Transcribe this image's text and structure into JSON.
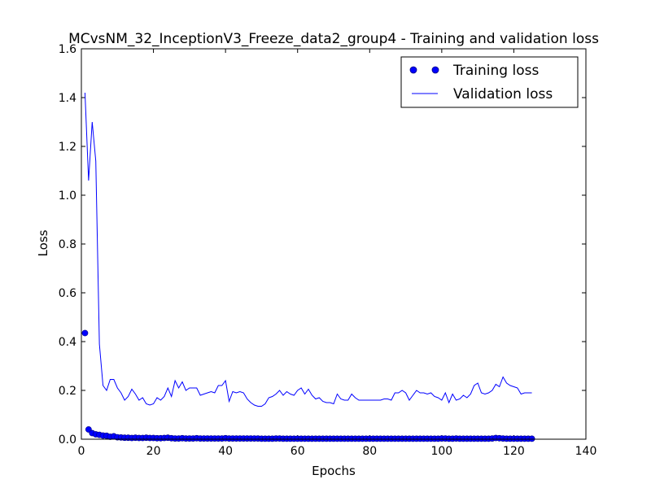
{
  "chart_data": {
    "type": "line",
    "title": "MCvsNM_32_InceptionV3_Freeze_data2_group4 - Training and validation loss",
    "xlabel": "Epochs",
    "ylabel": "Loss",
    "xlim": [
      0,
      140
    ],
    "ylim": [
      0.0,
      1.6
    ],
    "xticks": [
      0,
      20,
      40,
      60,
      80,
      100,
      120,
      140
    ],
    "xtick_labels": [
      "0",
      "20",
      "40",
      "60",
      "80",
      "100",
      "120",
      "140"
    ],
    "yticks": [
      0.0,
      0.2,
      0.4,
      0.6,
      0.8,
      1.0,
      1.2,
      1.4,
      1.6
    ],
    "ytick_labels": [
      "0.0",
      "0.2",
      "0.4",
      "0.6",
      "0.8",
      "1.0",
      "1.2",
      "1.4",
      "1.6"
    ],
    "grid": false,
    "legend_position": "top-right",
    "series": [
      {
        "name": "Training loss",
        "style": "markers",
        "color": "#0000ff",
        "x": [
          1,
          2,
          3,
          4,
          5,
          6,
          7,
          8,
          9,
          10,
          11,
          12,
          13,
          14,
          15,
          16,
          17,
          18,
          19,
          20,
          21,
          22,
          23,
          24,
          25,
          26,
          27,
          28,
          29,
          30,
          31,
          32,
          33,
          34,
          35,
          36,
          37,
          38,
          39,
          40,
          41,
          42,
          43,
          44,
          45,
          46,
          47,
          48,
          49,
          50,
          51,
          52,
          53,
          54,
          55,
          56,
          57,
          58,
          59,
          60,
          61,
          62,
          63,
          64,
          65,
          66,
          67,
          68,
          69,
          70,
          71,
          72,
          73,
          74,
          75,
          76,
          77,
          78,
          79,
          80,
          81,
          82,
          83,
          84,
          85,
          86,
          87,
          88,
          89,
          90,
          91,
          92,
          93,
          94,
          95,
          96,
          97,
          98,
          99,
          100,
          101,
          102,
          103,
          104,
          105,
          106,
          107,
          108,
          109,
          110,
          111,
          112,
          113,
          114,
          115,
          116,
          117,
          118,
          119,
          120,
          121,
          122,
          123,
          124,
          125
        ],
        "y": [
          0.435,
          0.04,
          0.025,
          0.02,
          0.018,
          0.015,
          0.014,
          0.01,
          0.012,
          0.008,
          0.007,
          0.006,
          0.006,
          0.005,
          0.006,
          0.005,
          0.005,
          0.006,
          0.005,
          0.005,
          0.004,
          0.004,
          0.005,
          0.006,
          0.004,
          0.003,
          0.003,
          0.004,
          0.003,
          0.003,
          0.003,
          0.004,
          0.003,
          0.003,
          0.003,
          0.003,
          0.003,
          0.003,
          0.003,
          0.004,
          0.003,
          0.003,
          0.003,
          0.003,
          0.003,
          0.003,
          0.003,
          0.003,
          0.003,
          0.002,
          0.002,
          0.002,
          0.002,
          0.003,
          0.003,
          0.002,
          0.002,
          0.002,
          0.002,
          0.002,
          0.002,
          0.002,
          0.002,
          0.002,
          0.002,
          0.002,
          0.002,
          0.002,
          0.002,
          0.002,
          0.002,
          0.002,
          0.002,
          0.002,
          0.002,
          0.002,
          0.002,
          0.002,
          0.002,
          0.002,
          0.002,
          0.002,
          0.002,
          0.002,
          0.002,
          0.002,
          0.002,
          0.002,
          0.002,
          0.002,
          0.002,
          0.002,
          0.002,
          0.002,
          0.002,
          0.002,
          0.002,
          0.002,
          0.002,
          0.003,
          0.003,
          0.002,
          0.002,
          0.003,
          0.002,
          0.002,
          0.002,
          0.002,
          0.002,
          0.002,
          0.002,
          0.002,
          0.002,
          0.003,
          0.005,
          0.004,
          0.003,
          0.002,
          0.002,
          0.002,
          0.002,
          0.002,
          0.002,
          0.002,
          0.002
        ]
      },
      {
        "name": "Validation loss",
        "style": "line",
        "color": "#0000ff",
        "x": [
          1,
          2,
          3,
          4,
          5,
          6,
          7,
          8,
          9,
          10,
          11,
          12,
          13,
          14,
          15,
          16,
          17,
          18,
          19,
          20,
          21,
          22,
          23,
          24,
          25,
          26,
          27,
          28,
          29,
          30,
          31,
          32,
          33,
          34,
          35,
          36,
          37,
          38,
          39,
          40,
          41,
          42,
          43,
          44,
          45,
          46,
          47,
          48,
          49,
          50,
          51,
          52,
          53,
          54,
          55,
          56,
          57,
          58,
          59,
          60,
          61,
          62,
          63,
          64,
          65,
          66,
          67,
          68,
          69,
          70,
          71,
          72,
          73,
          74,
          75,
          76,
          77,
          78,
          79,
          80,
          81,
          82,
          83,
          84,
          85,
          86,
          87,
          88,
          89,
          90,
          91,
          92,
          93,
          94,
          95,
          96,
          97,
          98,
          99,
          100,
          101,
          102,
          103,
          104,
          105,
          106,
          107,
          108,
          109,
          110,
          111,
          112,
          113,
          114,
          115,
          116,
          117,
          118,
          119,
          120,
          121,
          122,
          123,
          124,
          125
        ],
        "y": [
          1.42,
          1.06,
          1.3,
          1.14,
          0.39,
          0.22,
          0.2,
          0.245,
          0.245,
          0.21,
          0.19,
          0.16,
          0.175,
          0.205,
          0.185,
          0.16,
          0.17,
          0.145,
          0.14,
          0.145,
          0.17,
          0.16,
          0.175,
          0.21,
          0.175,
          0.24,
          0.21,
          0.235,
          0.2,
          0.21,
          0.21,
          0.21,
          0.18,
          0.185,
          0.19,
          0.195,
          0.19,
          0.22,
          0.22,
          0.24,
          0.155,
          0.195,
          0.19,
          0.195,
          0.19,
          0.165,
          0.15,
          0.14,
          0.135,
          0.135,
          0.145,
          0.17,
          0.175,
          0.185,
          0.2,
          0.18,
          0.195,
          0.185,
          0.18,
          0.2,
          0.21,
          0.185,
          0.205,
          0.18,
          0.165,
          0.17,
          0.155,
          0.15,
          0.15,
          0.145,
          0.185,
          0.165,
          0.16,
          0.16,
          0.185,
          0.17,
          0.16,
          0.16,
          0.16,
          0.16,
          0.16,
          0.16,
          0.16,
          0.165,
          0.165,
          0.16,
          0.19,
          0.19,
          0.2,
          0.19,
          0.16,
          0.18,
          0.2,
          0.19,
          0.19,
          0.185,
          0.19,
          0.175,
          0.17,
          0.16,
          0.19,
          0.15,
          0.185,
          0.16,
          0.165,
          0.18,
          0.17,
          0.185,
          0.22,
          0.23,
          0.19,
          0.185,
          0.19,
          0.2,
          0.225,
          0.215,
          0.255,
          0.23,
          0.22,
          0.215,
          0.21,
          0.185,
          0.19,
          0.19,
          0.19
        ]
      }
    ]
  }
}
